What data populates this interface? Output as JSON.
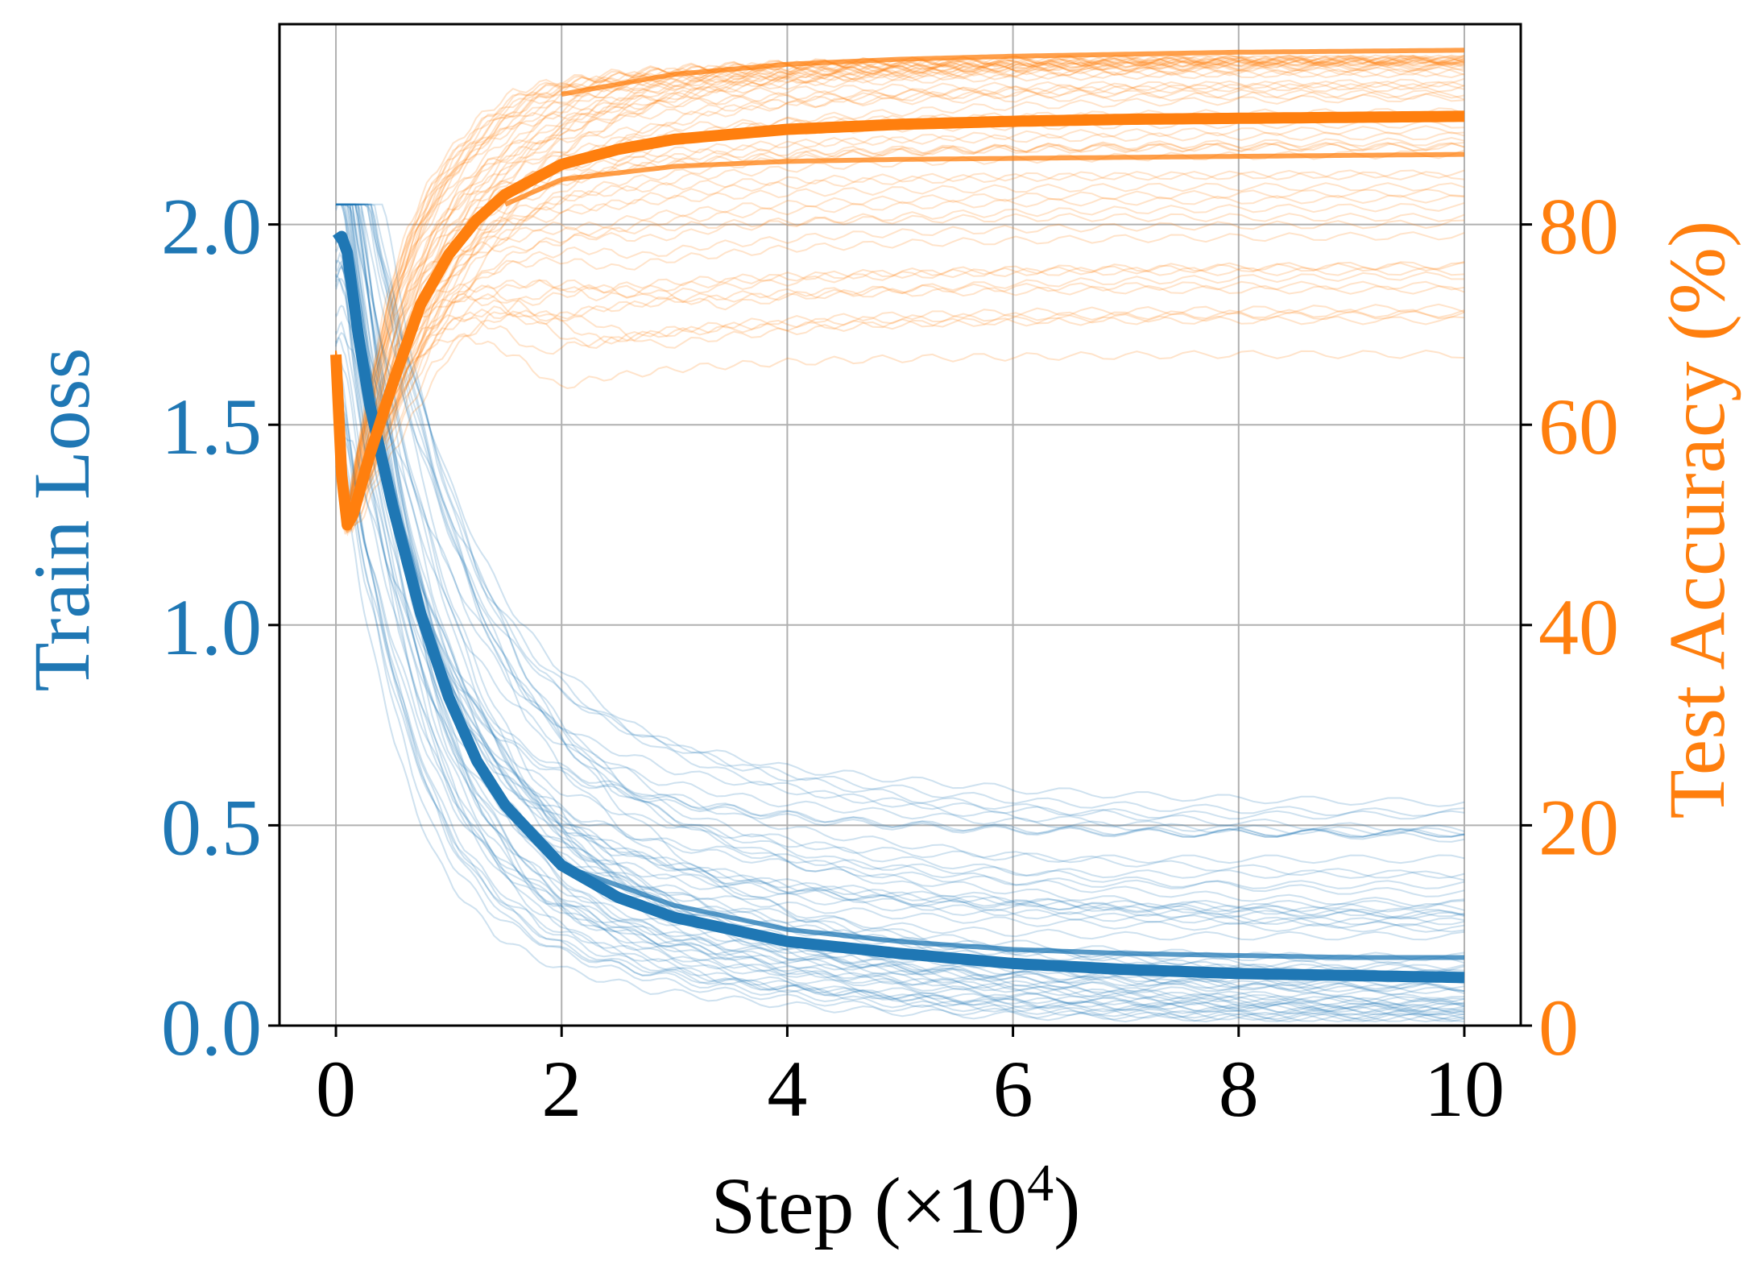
{
  "chart_data": {
    "type": "line",
    "xlabel_main": "Step (×10",
    "xlabel_exp": "4",
    "xlabel_close": ")",
    "ylabel_left": "Train Loss",
    "ylabel_right": "Test Accuracy (%)",
    "xlim": [
      -0.5,
      10.5
    ],
    "ylim_left": [
      0.0,
      2.5
    ],
    "ylim_right": [
      0,
      100
    ],
    "grid": true,
    "x_ticks": [
      0,
      2,
      4,
      6,
      8,
      10
    ],
    "x_tick_labels": [
      "0",
      "2",
      "4",
      "6",
      "8",
      "10"
    ],
    "y_left_ticks": [
      0.0,
      0.5,
      1.0,
      1.5,
      2.0
    ],
    "y_left_tick_labels": [
      "0.0",
      "0.5",
      "1.0",
      "1.5",
      "2.0"
    ],
    "y_right_ticks": [
      0,
      20,
      40,
      60,
      80
    ],
    "y_right_tick_labels": [
      "0",
      "20",
      "40",
      "60",
      "80"
    ],
    "colors": {
      "loss": "#1f77b4",
      "accuracy": "#ff7f0e",
      "grid": "#b0b0b0",
      "axis": "#000000"
    },
    "series": [
      {
        "axis": "left",
        "role": "mean-train-loss",
        "x": [
          0,
          0.05,
          0.1,
          0.2,
          0.3,
          0.5,
          0.75,
          1.0,
          1.25,
          1.5,
          2.0,
          2.5,
          3.0,
          4.0,
          5.0,
          6.0,
          7.0,
          8.0,
          9.0,
          10.0
        ],
        "values": [
          1.96,
          1.97,
          1.93,
          1.72,
          1.55,
          1.3,
          1.03,
          0.82,
          0.66,
          0.55,
          0.4,
          0.32,
          0.27,
          0.21,
          0.18,
          0.155,
          0.14,
          0.13,
          0.125,
          0.12
        ]
      },
      {
        "axis": "left",
        "role": "train-loss-band",
        "x": [
          2,
          3,
          4,
          5,
          6,
          7,
          8,
          9,
          10
        ],
        "values": [
          0.4,
          0.3,
          0.24,
          0.21,
          0.19,
          0.18,
          0.175,
          0.17,
          0.17
        ]
      },
      {
        "axis": "right",
        "role": "mean-test-accuracy",
        "x": [
          0,
          0.05,
          0.1,
          0.15,
          0.2,
          0.3,
          0.5,
          0.75,
          1.0,
          1.25,
          1.5,
          2.0,
          2.5,
          3.0,
          4.0,
          5.0,
          6.0,
          7.0,
          8.0,
          9.0,
          10.0
        ],
        "values": [
          67,
          55,
          50,
          51,
          53,
          57,
          64,
          72,
          77,
          80.5,
          83,
          86,
          87.5,
          88.5,
          89.5,
          90,
          90.3,
          90.5,
          90.6,
          90.7,
          90.8
        ]
      },
      {
        "axis": "right",
        "role": "test-accuracy-band",
        "x": [
          1.5,
          2,
          3,
          4,
          5,
          6,
          7,
          8,
          9,
          10
        ],
        "values": [
          82,
          84.5,
          85.8,
          86.3,
          86.5,
          86.6,
          86.7,
          86.8,
          86.9,
          87
        ]
      },
      {
        "axis": "right",
        "role": "test-accuracy-band",
        "x": [
          2,
          3,
          4,
          5,
          6,
          7,
          8,
          9,
          10
        ],
        "values": [
          93,
          95,
          96,
          96.5,
          96.8,
          97,
          97.2,
          97.3,
          97.4
        ]
      }
    ]
  }
}
